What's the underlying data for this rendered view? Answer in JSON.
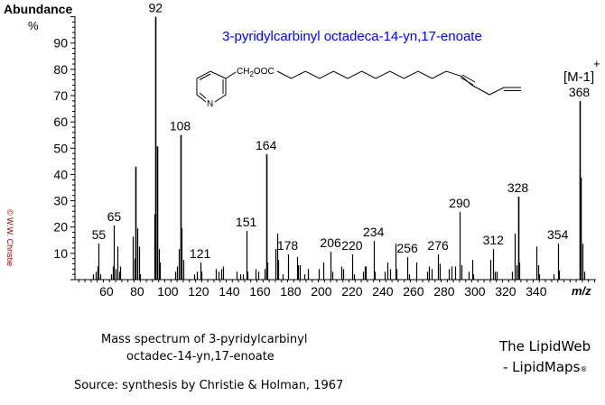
{
  "chart_data": {
    "type": "bar",
    "title": "3-pyridylcarbinyl octadeca-14-yn,17-enoate",
    "xlabel": "m/z",
    "ylabel": "Abundance",
    "ylabel_unit": "%",
    "xlim": [
      40,
      379
    ],
    "ylim": [
      0,
      100
    ],
    "x_ticks": [
      60,
      80,
      100,
      120,
      140,
      160,
      180,
      200,
      220,
      240,
      260,
      280,
      300,
      320,
      340
    ],
    "y_ticks": [
      10,
      20,
      30,
      40,
      50,
      60,
      70,
      80,
      90
    ],
    "grid": false,
    "peaks": [
      {
        "mz": 51,
        "y": 2
      },
      {
        "mz": 53,
        "y": 3
      },
      {
        "mz": 54,
        "y": 5
      },
      {
        "mz": 55,
        "y": 13.7
      },
      {
        "mz": 56,
        "y": 2
      },
      {
        "mz": 63,
        "y": 2
      },
      {
        "mz": 64,
        "y": 5
      },
      {
        "mz": 65,
        "y": 20.6
      },
      {
        "mz": 66,
        "y": 4
      },
      {
        "mz": 67,
        "y": 12.6
      },
      {
        "mz": 68,
        "y": 3
      },
      {
        "mz": 69,
        "y": 5
      },
      {
        "mz": 77,
        "y": 16.4
      },
      {
        "mz": 78,
        "y": 8
      },
      {
        "mz": 79,
        "y": 43
      },
      {
        "mz": 80,
        "y": 19.5
      },
      {
        "mz": 81,
        "y": 12.6
      },
      {
        "mz": 82,
        "y": 2
      },
      {
        "mz": 91,
        "y": 24.8
      },
      {
        "mz": 92,
        "y": 100
      },
      {
        "mz": 93,
        "y": 50.7
      },
      {
        "mz": 94,
        "y": 11.6
      },
      {
        "mz": 95,
        "y": 6.5
      },
      {
        "mz": 105,
        "y": 3
      },
      {
        "mz": 106,
        "y": 5
      },
      {
        "mz": 107,
        "y": 11.6
      },
      {
        "mz": 108,
        "y": 55
      },
      {
        "mz": 109,
        "y": 19.5
      },
      {
        "mz": 110,
        "y": 7.5
      },
      {
        "mz": 117,
        "y": 2
      },
      {
        "mz": 119,
        "y": 3
      },
      {
        "mz": 121,
        "y": 6.5
      },
      {
        "mz": 122,
        "y": 3
      },
      {
        "mz": 131,
        "y": 4
      },
      {
        "mz": 133,
        "y": 3
      },
      {
        "mz": 135,
        "y": 4
      },
      {
        "mz": 136,
        "y": 5
      },
      {
        "mz": 145,
        "y": 3
      },
      {
        "mz": 147,
        "y": 2
      },
      {
        "mz": 149,
        "y": 2
      },
      {
        "mz": 151,
        "y": 18.5
      },
      {
        "mz": 152,
        "y": 3
      },
      {
        "mz": 157,
        "y": 4
      },
      {
        "mz": 159,
        "y": 3
      },
      {
        "mz": 163,
        "y": 4
      },
      {
        "mz": 164,
        "y": 47.7
      },
      {
        "mz": 165,
        "y": 6.5
      },
      {
        "mz": 170,
        "y": 11.6
      },
      {
        "mz": 171,
        "y": 17.5
      },
      {
        "mz": 172,
        "y": 7.5
      },
      {
        "mz": 175,
        "y": 2
      },
      {
        "mz": 178,
        "y": 9.6
      },
      {
        "mz": 184,
        "y": 8.6
      },
      {
        "mz": 185,
        "y": 5.5
      },
      {
        "mz": 186,
        "y": 5.5
      },
      {
        "mz": 189,
        "y": 2
      },
      {
        "mz": 191,
        "y": 4
      },
      {
        "mz": 198,
        "y": 4
      },
      {
        "mz": 201,
        "y": 6.5
      },
      {
        "mz": 206,
        "y": 10.6
      },
      {
        "mz": 207,
        "y": 3
      },
      {
        "mz": 213,
        "y": 5
      },
      {
        "mz": 214,
        "y": 4
      },
      {
        "mz": 220,
        "y": 9.6
      },
      {
        "mz": 221,
        "y": 2
      },
      {
        "mz": 227,
        "y": 3
      },
      {
        "mz": 228,
        "y": 5
      },
      {
        "mz": 229,
        "y": 5
      },
      {
        "mz": 234,
        "y": 14.7
      },
      {
        "mz": 235,
        "y": 3
      },
      {
        "mz": 241,
        "y": 3
      },
      {
        "mz": 243,
        "y": 6.5
      },
      {
        "mz": 245,
        "y": 4
      },
      {
        "mz": 248,
        "y": 13.7
      },
      {
        "mz": 249,
        "y": 4
      },
      {
        "mz": 256,
        "y": 8.6
      },
      {
        "mz": 257,
        "y": 2
      },
      {
        "mz": 262,
        "y": 6.5
      },
      {
        "mz": 269,
        "y": 3
      },
      {
        "mz": 270,
        "y": 5
      },
      {
        "mz": 272,
        "y": 4
      },
      {
        "mz": 276,
        "y": 9.6
      },
      {
        "mz": 277,
        "y": 6
      },
      {
        "mz": 283,
        "y": 4
      },
      {
        "mz": 285,
        "y": 5
      },
      {
        "mz": 287,
        "y": 5
      },
      {
        "mz": 290,
        "y": 25.7
      },
      {
        "mz": 291,
        "y": 5.5
      },
      {
        "mz": 296,
        "y": 3
      },
      {
        "mz": 298,
        "y": 7.5
      },
      {
        "mz": 299,
        "y": 2
      },
      {
        "mz": 310,
        "y": 7.5
      },
      {
        "mz": 312,
        "y": 11.6
      },
      {
        "mz": 313,
        "y": 3
      },
      {
        "mz": 314,
        "y": 3
      },
      {
        "mz": 324,
        "y": 3
      },
      {
        "mz": 326,
        "y": 17.5
      },
      {
        "mz": 327,
        "y": 5.5
      },
      {
        "mz": 328,
        "y": 31.6
      },
      {
        "mz": 329,
        "y": 6.5
      },
      {
        "mz": 340,
        "y": 12.6
      },
      {
        "mz": 341,
        "y": 5.5
      },
      {
        "mz": 342,
        "y": 2
      },
      {
        "mz": 351,
        "y": 2
      },
      {
        "mz": 354,
        "y": 13.7
      },
      {
        "mz": 355,
        "y": 3.4
      },
      {
        "mz": 368,
        "y": 67.9
      },
      {
        "mz": 369,
        "y": 38.8
      },
      {
        "mz": 370,
        "y": 13.7
      },
      {
        "mz": 371,
        "y": 3
      }
    ],
    "peak_labels": [
      "55",
      "65",
      "92",
      "108",
      "121",
      "151",
      "164",
      "178",
      "206",
      "220",
      "234",
      "256",
      "276",
      "290",
      "312",
      "328",
      "354",
      "368"
    ],
    "annotations": {
      "molecular_ion": "[M-1]",
      "molecular_ion_charge": "+"
    }
  },
  "structure": {
    "substituent": "CH2OOC",
    "substituent_sub": "2",
    "ring_atom": "N"
  },
  "copyright": "© W.W. Christie",
  "caption": {
    "line1": "Mass spectrum of 3-pyridylcarbinyl",
    "line2": "octadec-14-yn,17-enoate"
  },
  "source": "Source: synthesis by Christie & Holman, 1967",
  "brand": {
    "line1": "The LipidWeb",
    "line2": "- LipidMaps",
    "mark": "®"
  },
  "colors": {
    "title": "#0000ff",
    "peaks": "#000000",
    "copyright": "#800000"
  }
}
